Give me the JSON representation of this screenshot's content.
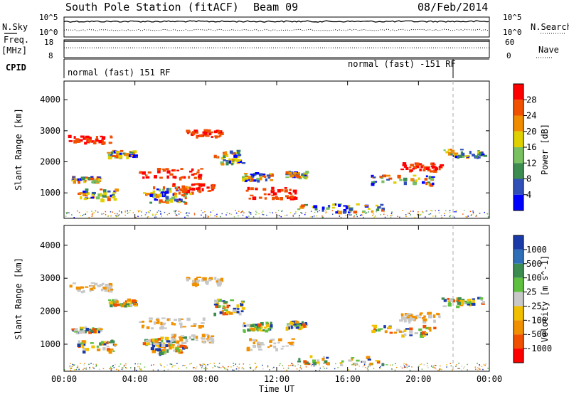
{
  "header": {
    "station": "South Pole Station (fitACF)",
    "beam": "Beam 09",
    "date": "08/Feb/2014"
  },
  "side_labels": {
    "n_sky": "N.Sky",
    "n_search": "N.Search",
    "freq": "Freq.",
    "freq_unit": "[MHz]",
    "nave": "Nave",
    "cpid": "CPID"
  },
  "cpid_labels": {
    "first": "normal (fast) 151 RF",
    "second": "normal (fast) -151 RF"
  },
  "chart_data": [
    {
      "type": "line",
      "name": "noise",
      "left_ticks": [
        "10^5",
        "10^0"
      ],
      "right_ticks": [
        "10^5",
        "10^0"
      ],
      "series": [
        {
          "name": "N.Sky",
          "style": "solid",
          "level": 0.78
        },
        {
          "name": "N.Search",
          "style": "dotted",
          "level": 0.35
        }
      ]
    },
    {
      "type": "line",
      "name": "frequency",
      "left_ticks": [
        "18",
        "8"
      ],
      "right_ticks": [
        "60",
        "0"
      ],
      "series": [
        {
          "name": "Freq.",
          "style": "solid",
          "level": 0.92
        },
        {
          "name": "Nave",
          "style": "dotted",
          "level": 0.55
        }
      ]
    },
    {
      "type": "heatmap",
      "name": "power",
      "ylabel": "Slant Range [km]",
      "ylim": [
        180,
        4600
      ],
      "yticks": [
        "1000",
        "2000",
        "3000",
        "4000"
      ],
      "colorbar_label": "Power [dB]",
      "colorbar_ticks": [
        "4",
        "8",
        "12",
        "16",
        "20",
        "24",
        "28"
      ],
      "colorbar_colors": [
        "#0000ff",
        "#3050b8",
        "#3c8c50",
        "#78c060",
        "#e0d000",
        "#f08c00",
        "#f05000",
        "#ff0000"
      ]
    },
    {
      "type": "heatmap",
      "name": "velocity",
      "ylabel": "Slant Range [km]",
      "ylim": [
        180,
        4600
      ],
      "yticks": [
        "1000",
        "2000",
        "3000",
        "4000"
      ],
      "xlabel": "Time UT",
      "xticks": [
        "00:00",
        "04:00",
        "08:00",
        "12:00",
        "16:00",
        "20:00",
        "00:00"
      ],
      "colorbar_label": "Velocity [m s^-1]",
      "colorbar_ticks": [
        "1000",
        "500",
        "100",
        "25",
        "-25",
        "-100",
        "-500",
        "-1000"
      ],
      "colorbar_colors": [
        "#1a3aa8",
        "#2f6fb8",
        "#3c8c50",
        "#5fc040",
        "#c8c8c8",
        "#f0c000",
        "#f09000",
        "#f05000",
        "#ff0000"
      ]
    }
  ],
  "x_axis": {
    "label": "Time UT",
    "ticks": [
      "00:00",
      "04:00",
      "08:00",
      "12:00",
      "16:00",
      "20:00",
      "00:00"
    ]
  }
}
